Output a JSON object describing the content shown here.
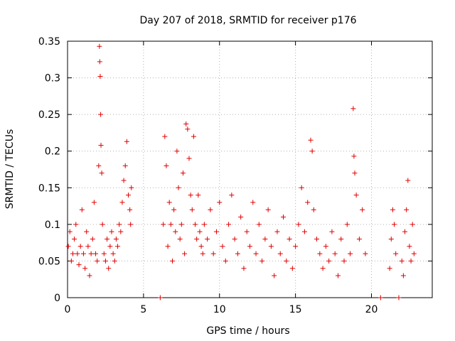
{
  "chart_data": {
    "type": "scatter",
    "title": "Day 207 of 2018, SRMTID for receiver p176",
    "xlabel": "GPS time / hours",
    "ylabel": "SRMTID / TECUs",
    "xlim": [
      0,
      24
    ],
    "ylim": [
      0,
      0.35
    ],
    "x_ticks": [
      0,
      5,
      10,
      15,
      20
    ],
    "x_tick_labels": [
      "0",
      "5",
      "10",
      "15",
      "20"
    ],
    "y_ticks": [
      0,
      0.05,
      0.1,
      0.15,
      0.2,
      0.25,
      0.3,
      0.35
    ],
    "y_tick_labels": [
      "0",
      "0.05",
      "0.1",
      "0.15",
      "0.2",
      "0.25",
      "0.3",
      "0.35"
    ],
    "grid": true,
    "marker": "+",
    "marker_color": "#e00000",
    "series": [
      {
        "name": "SRMTID",
        "color": "#e00000",
        "points": [
          [
            0.05,
            0.07
          ],
          [
            0.15,
            0.09
          ],
          [
            0.25,
            0.05
          ],
          [
            0.35,
            0.06
          ],
          [
            0.45,
            0.08
          ],
          [
            0.55,
            0.1
          ],
          [
            0.65,
            0.06
          ],
          [
            0.75,
            0.045
          ],
          [
            0.85,
            0.07
          ],
          [
            0.95,
            0.12
          ],
          [
            1.05,
            0.06
          ],
          [
            1.15,
            0.04
          ],
          [
            1.25,
            0.09
          ],
          [
            1.35,
            0.07
          ],
          [
            1.45,
            0.03
          ],
          [
            1.55,
            0.06
          ],
          [
            1.65,
            0.08
          ],
          [
            1.75,
            0.13
          ],
          [
            1.85,
            0.06
          ],
          [
            1.95,
            0.05
          ],
          [
            2.05,
            0.18
          ],
          [
            2.1,
            0.343
          ],
          [
            2.12,
            0.322
          ],
          [
            2.15,
            0.302
          ],
          [
            2.18,
            0.25
          ],
          [
            2.2,
            0.208
          ],
          [
            2.25,
            0.17
          ],
          [
            2.3,
            0.1
          ],
          [
            2.4,
            0.06
          ],
          [
            2.5,
            0.05
          ],
          [
            2.6,
            0.08
          ],
          [
            2.7,
            0.04
          ],
          [
            2.8,
            0.07
          ],
          [
            2.9,
            0.09
          ],
          [
            3.0,
            0.06
          ],
          [
            3.1,
            0.05
          ],
          [
            3.2,
            0.08
          ],
          [
            3.3,
            0.07
          ],
          [
            3.4,
            0.1
          ],
          [
            3.5,
            0.09
          ],
          [
            3.6,
            0.13
          ],
          [
            3.7,
            0.16
          ],
          [
            3.8,
            0.18
          ],
          [
            3.9,
            0.213
          ],
          [
            4.0,
            0.14
          ],
          [
            4.1,
            0.12
          ],
          [
            4.15,
            0.1
          ],
          [
            4.2,
            0.15
          ],
          [
            6.1,
            0.0
          ],
          [
            6.3,
            0.1
          ],
          [
            6.4,
            0.22
          ],
          [
            6.5,
            0.18
          ],
          [
            6.6,
            0.07
          ],
          [
            6.7,
            0.13
          ],
          [
            6.8,
            0.1
          ],
          [
            6.9,
            0.05
          ],
          [
            7.0,
            0.12
          ],
          [
            7.1,
            0.09
          ],
          [
            7.2,
            0.2
          ],
          [
            7.3,
            0.15
          ],
          [
            7.4,
            0.08
          ],
          [
            7.5,
            0.1
          ],
          [
            7.6,
            0.17
          ],
          [
            7.7,
            0.06
          ],
          [
            7.8,
            0.237
          ],
          [
            7.9,
            0.23
          ],
          [
            8.0,
            0.19
          ],
          [
            8.1,
            0.14
          ],
          [
            8.2,
            0.12
          ],
          [
            8.3,
            0.22
          ],
          [
            8.4,
            0.1
          ],
          [
            8.5,
            0.08
          ],
          [
            8.6,
            0.14
          ],
          [
            8.7,
            0.09
          ],
          [
            8.8,
            0.07
          ],
          [
            8.9,
            0.06
          ],
          [
            9.0,
            0.1
          ],
          [
            9.2,
            0.08
          ],
          [
            9.4,
            0.12
          ],
          [
            9.6,
            0.06
          ],
          [
            9.8,
            0.09
          ],
          [
            10.0,
            0.13
          ],
          [
            10.2,
            0.07
          ],
          [
            10.4,
            0.05
          ],
          [
            10.6,
            0.1
          ],
          [
            10.8,
            0.14
          ],
          [
            11.0,
            0.08
          ],
          [
            11.2,
            0.06
          ],
          [
            11.4,
            0.11
          ],
          [
            11.6,
            0.04
          ],
          [
            11.8,
            0.09
          ],
          [
            12.0,
            0.07
          ],
          [
            12.2,
            0.13
          ],
          [
            12.4,
            0.06
          ],
          [
            12.6,
            0.1
          ],
          [
            12.8,
            0.05
          ],
          [
            13.0,
            0.08
          ],
          [
            13.2,
            0.12
          ],
          [
            13.4,
            0.07
          ],
          [
            13.6,
            0.03
          ],
          [
            13.8,
            0.09
          ],
          [
            14.0,
            0.06
          ],
          [
            14.2,
            0.11
          ],
          [
            14.4,
            0.05
          ],
          [
            14.6,
            0.08
          ],
          [
            14.8,
            0.04
          ],
          [
            15.0,
            0.07
          ],
          [
            15.2,
            0.1
          ],
          [
            15.4,
            0.15
          ],
          [
            15.6,
            0.09
          ],
          [
            15.8,
            0.13
          ],
          [
            16.0,
            0.215
          ],
          [
            16.1,
            0.2
          ],
          [
            16.2,
            0.12
          ],
          [
            16.4,
            0.08
          ],
          [
            16.6,
            0.06
          ],
          [
            16.8,
            0.04
          ],
          [
            17.0,
            0.07
          ],
          [
            17.2,
            0.05
          ],
          [
            17.4,
            0.09
          ],
          [
            17.6,
            0.06
          ],
          [
            17.8,
            0.03
          ],
          [
            18.0,
            0.08
          ],
          [
            18.2,
            0.05
          ],
          [
            18.4,
            0.1
          ],
          [
            18.6,
            0.06
          ],
          [
            18.8,
            0.258
          ],
          [
            18.85,
            0.193
          ],
          [
            18.9,
            0.17
          ],
          [
            19.0,
            0.14
          ],
          [
            19.2,
            0.08
          ],
          [
            19.4,
            0.12
          ],
          [
            19.6,
            0.06
          ],
          [
            20.6,
            0.0
          ],
          [
            21.2,
            0.04
          ],
          [
            21.3,
            0.08
          ],
          [
            21.4,
            0.12
          ],
          [
            21.5,
            0.1
          ],
          [
            21.6,
            0.06
          ],
          [
            21.8,
            0.0
          ],
          [
            22.0,
            0.05
          ],
          [
            22.1,
            0.03
          ],
          [
            22.2,
            0.09
          ],
          [
            22.3,
            0.12
          ],
          [
            22.4,
            0.16
          ],
          [
            22.5,
            0.07
          ],
          [
            22.6,
            0.05
          ],
          [
            22.7,
            0.1
          ],
          [
            22.8,
            0.06
          ]
        ]
      }
    ]
  }
}
